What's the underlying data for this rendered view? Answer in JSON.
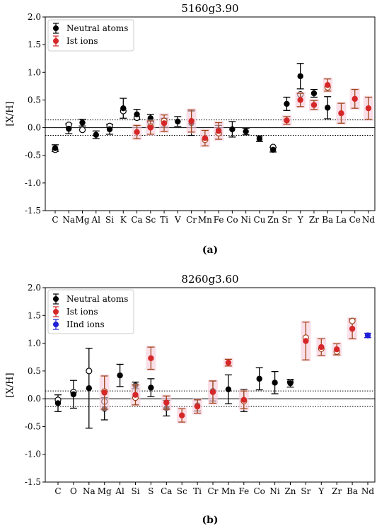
{
  "panels": [
    {
      "title": "5160g3.90",
      "caption": "(a)",
      "ylabel": "[X/H]",
      "legend": [
        {
          "label": "Neutral atoms",
          "color": "#000000"
        },
        {
          "label": "Ist ions",
          "color": "#d62728"
        }
      ],
      "chart_data": {
        "type": "scatter",
        "title": "5160g3.90",
        "ylabel": "[X/H]",
        "xlabel": "",
        "ylim": [
          -1.5,
          2.0
        ],
        "yticks": [
          -1.5,
          -1.0,
          -0.5,
          0.0,
          0.5,
          1.0,
          1.5,
          2.0
        ],
        "reference_lines": [
          0.0,
          0.14,
          -0.14
        ],
        "categories": [
          "C",
          "Na",
          "Mg",
          "Al",
          "Si",
          "K",
          "Ca",
          "Sc",
          "Ti",
          "V",
          "Cr",
          "Mn",
          "Fe",
          "Co",
          "Ni",
          "Cu",
          "Zn",
          "Sr",
          "Y",
          "Zr",
          "Ba",
          "La",
          "Ce",
          "Nd"
        ],
        "series": [
          {
            "name": "Neutral atoms",
            "color": "#000000",
            "points": [
              {
                "el": "C",
                "y": -0.37,
                "err": 0.06,
                "open": -0.4
              },
              {
                "el": "Na",
                "y": -0.02,
                "err": 0.09,
                "open": 0.05
              },
              {
                "el": "Mg",
                "y": 0.09,
                "err": 0.06,
                "open": -0.04
              },
              {
                "el": "Al",
                "y": -0.13,
                "err": 0.07
              },
              {
                "el": "Si",
                "y": -0.03,
                "err": 0.09,
                "open": 0.03
              },
              {
                "el": "K",
                "y": 0.35,
                "err": 0.18,
                "open": 0.3
              },
              {
                "el": "Ca",
                "y": 0.24,
                "err": 0.09,
                "open": 0.18
              },
              {
                "el": "Sc",
                "y": 0.17,
                "err": 0.07,
                "open": 0.1
              },
              {
                "el": "Ti",
                "y": 0.09,
                "err": 0.08
              },
              {
                "el": "V",
                "y": 0.11,
                "err": 0.09
              },
              {
                "el": "Cr",
                "y": 0.08,
                "err": 0.22
              },
              {
                "el": "Fe",
                "y": -0.04,
                "err": 0.08
              },
              {
                "el": "Co",
                "y": -0.03,
                "err": 0.14
              },
              {
                "el": "Ni",
                "y": -0.07,
                "err": 0.06
              },
              {
                "el": "Cu",
                "y": -0.2,
                "err": 0.05
              },
              {
                "el": "Zn",
                "y": -0.4,
                "err": 0.04,
                "open": -0.35
              },
              {
                "el": "Sr",
                "y": 0.43,
                "err": 0.12
              },
              {
                "el": "Y",
                "y": 0.93,
                "err": 0.23,
                "open": 0.6
              },
              {
                "el": "Zr",
                "y": 0.62,
                "err": 0.07
              },
              {
                "el": "Ba",
                "y": 0.36,
                "err": 0.2
              }
            ]
          },
          {
            "name": "Ist ions",
            "color": "#d62728",
            "points": [
              {
                "el": "Ca",
                "y": -0.08,
                "err": 0.12
              },
              {
                "el": "Sc",
                "y": 0.0,
                "err": 0.12,
                "open": 0.02
              },
              {
                "el": "Ti",
                "y": 0.08,
                "err": 0.15,
                "open": 0.12
              },
              {
                "el": "Cr",
                "y": 0.12,
                "err": 0.2
              },
              {
                "el": "Mn",
                "y": -0.19,
                "err": 0.14,
                "open": -0.22
              },
              {
                "el": "Fe",
                "y": -0.06,
                "err": 0.15,
                "open": -0.1
              },
              {
                "el": "Sr",
                "y": 0.13,
                "err": 0.07
              },
              {
                "el": "Y",
                "y": 0.5,
                "err": 0.12
              },
              {
                "el": "Zr",
                "y": 0.41,
                "err": 0.08
              },
              {
                "el": "Ba",
                "y": 0.77,
                "err": 0.11,
                "open": 0.73
              },
              {
                "el": "La",
                "y": 0.26,
                "err": 0.18
              },
              {
                "el": "Ce",
                "y": 0.52,
                "err": 0.17
              },
              {
                "el": "Nd",
                "y": 0.35,
                "err": 0.2
              }
            ]
          }
        ]
      }
    },
    {
      "title": "8260g3.60",
      "caption": "(b)",
      "ylabel": "[X/H]",
      "legend": [
        {
          "label": "Neutral atoms",
          "color": "#000000"
        },
        {
          "label": "Ist ions",
          "color": "#d62728"
        },
        {
          "label": "IInd ions",
          "color": "#1f1fd6"
        }
      ],
      "chart_data": {
        "type": "scatter",
        "title": "8260g3.60",
        "ylabel": "[X/H]",
        "xlabel": "",
        "ylim": [
          -1.5,
          2.0
        ],
        "yticks": [
          -1.5,
          -1.0,
          -0.5,
          0.0,
          0.5,
          1.0,
          1.5,
          2.0
        ],
        "reference_lines": [
          0.0,
          0.14,
          -0.14
        ],
        "categories": [
          "C",
          "O",
          "Na",
          "Mg",
          "Al",
          "Si",
          "S",
          "Ca",
          "Sc",
          "Ti",
          "Cr",
          "Mn",
          "Fe",
          "Co",
          "Ni",
          "Zn",
          "Sr",
          "Y",
          "Zr",
          "Ba",
          "Nd"
        ],
        "series": [
          {
            "name": "Neutral atoms",
            "color": "#000000",
            "points": [
              {
                "el": "C",
                "y": -0.08,
                "err": 0.15,
                "open": -0.02
              },
              {
                "el": "O",
                "y": 0.08,
                "err": 0.25,
                "open": 0.12
              },
              {
                "el": "Na",
                "y": 0.19,
                "err": 0.72,
                "open": 0.5
              },
              {
                "el": "Mg",
                "y": -0.18,
                "err": 0.2,
                "open": -0.05
              },
              {
                "el": "Al",
                "y": 0.42,
                "err": 0.2
              },
              {
                "el": "Si",
                "y": 0.24,
                "err": 0.06
              },
              {
                "el": "S",
                "y": 0.2,
                "err": 0.16
              },
              {
                "el": "Ca",
                "y": -0.17,
                "err": 0.14
              },
              {
                "el": "Ti",
                "y": -0.12,
                "err": 0.1
              },
              {
                "el": "Cr",
                "y": 0.14,
                "err": 0.18
              },
              {
                "el": "Mn",
                "y": 0.17,
                "err": 0.26
              },
              {
                "el": "Fe",
                "y": -0.03,
                "err": 0.2
              },
              {
                "el": "Co",
                "y": 0.36,
                "err": 0.2
              },
              {
                "el": "Ni",
                "y": 0.29,
                "err": 0.2
              },
              {
                "el": "Zn",
                "y": 0.28,
                "err": 0.07,
                "open": 0.3
              }
            ]
          },
          {
            "name": "Ist ions",
            "color": "#d62728",
            "points": [
              {
                "el": "Mg",
                "y": 0.11,
                "err": 0.3,
                "open": 0.13
              },
              {
                "el": "Si",
                "y": 0.07,
                "err": 0.18,
                "open": 0.02
              },
              {
                "el": "S",
                "y": 0.73,
                "err": 0.2
              },
              {
                "el": "Ca",
                "y": -0.07,
                "err": 0.12
              },
              {
                "el": "Sc",
                "y": -0.3,
                "err": 0.12
              },
              {
                "el": "Ti",
                "y": -0.14,
                "err": 0.12
              },
              {
                "el": "Cr",
                "y": 0.12,
                "err": 0.2
              },
              {
                "el": "Mn",
                "y": 0.65,
                "err": 0.06
              },
              {
                "el": "Fe",
                "y": -0.02,
                "err": 0.16,
                "open": -0.04
              },
              {
                "el": "Sr",
                "y": 1.04,
                "err": 0.34,
                "open": 1.1
              },
              {
                "el": "Y",
                "y": 0.93,
                "err": 0.15,
                "open": 0.9
              },
              {
                "el": "Zr",
                "y": 0.89,
                "err": 0.1,
                "open": 0.85
              },
              {
                "el": "Ba",
                "y": 1.26,
                "err": 0.18,
                "open": 1.4
              }
            ]
          },
          {
            "name": "IInd ions",
            "color": "#1f1fd6",
            "points": [
              {
                "el": "Nd",
                "y": 1.14,
                "err": 0.04
              }
            ]
          }
        ]
      }
    }
  ]
}
